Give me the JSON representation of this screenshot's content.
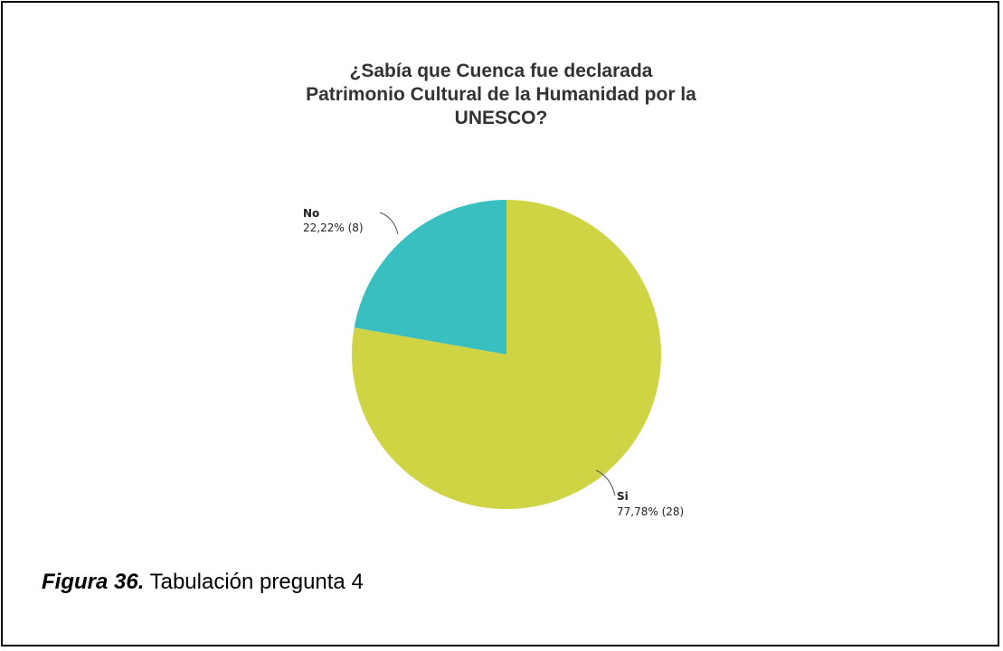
{
  "chart_data": {
    "type": "pie",
    "title_lines": [
      "¿Sabía que Cuenca fue declarada",
      "Patrimonio Cultural de la Humanidad por la",
      "UNESCO?"
    ],
    "slices": [
      {
        "label": "Si",
        "value": 28,
        "percent_text": "77,78% (28)",
        "color": "#cfd444"
      },
      {
        "label": "No",
        "value": 8,
        "percent_text": "22,22% (8)",
        "color": "#39bfc0"
      }
    ],
    "start": "top",
    "direction": "clockwise"
  },
  "caption": {
    "figure": "Figura 36.",
    "text": " Tabulación pregunta 4"
  }
}
